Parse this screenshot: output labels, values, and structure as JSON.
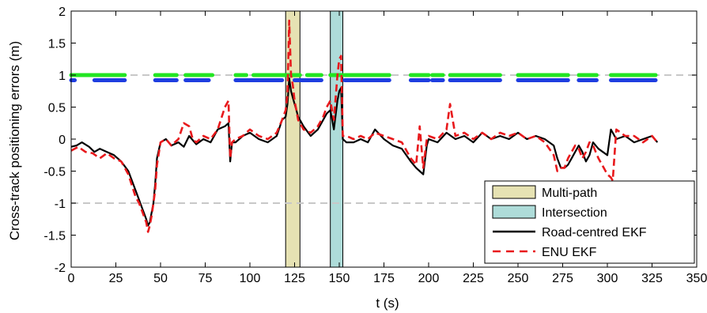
{
  "chart_data": {
    "type": "line",
    "xlabel": "t (s)",
    "ylabel": "Cross-track positioning errors (m)",
    "xlim": [
      0,
      350
    ],
    "ylim": [
      -2,
      2
    ],
    "xticks": [
      0,
      25,
      50,
      75,
      100,
      125,
      150,
      175,
      200,
      225,
      250,
      275,
      300,
      325,
      350
    ],
    "yticks": [
      -2,
      -1.5,
      -1,
      -0.5,
      0,
      0.5,
      1,
      1.5,
      2
    ],
    "xtick_labels": [
      "0",
      "25",
      "50",
      "75",
      "100",
      "125",
      "150",
      "175",
      "200",
      "225",
      "250",
      "275",
      "300",
      "325",
      "350"
    ],
    "ytick_labels": [
      "-2",
      "-1.5",
      "-1",
      "-0.5",
      "0",
      "0.5",
      "1",
      "1.5",
      "2"
    ],
    "grid": false,
    "legend_position": "bottom-right",
    "reference_lines": [
      {
        "y": 1,
        "style": "dashed",
        "color": "#c8c8c8"
      },
      {
        "y": -1,
        "style": "dashed",
        "color": "#c8c8c8"
      }
    ],
    "regions": [
      {
        "name": "Multi-path",
        "x0": 120,
        "x1": 128,
        "color": "#e6e2b3"
      },
      {
        "name": "Intersection",
        "x0": 145,
        "x1": 152,
        "color": "#aedcd9"
      }
    ],
    "series": [
      {
        "name": "Road-centred EKF",
        "color": "#000000",
        "style": "solid",
        "x": [
          0,
          3,
          6,
          10,
          13,
          16,
          20,
          24,
          28,
          32,
          36,
          38,
          40,
          42,
          43,
          44,
          45,
          46,
          47,
          48,
          50,
          53,
          56,
          60,
          63,
          66,
          70,
          74,
          78,
          82,
          86,
          88,
          89,
          90,
          92,
          96,
          100,
          105,
          110,
          115,
          118,
          120,
          121,
          122,
          123,
          124,
          125,
          126,
          127,
          128,
          130,
          134,
          138,
          141,
          143,
          145,
          147,
          149,
          150,
          151,
          152,
          154,
          158,
          162,
          166,
          170,
          175,
          180,
          185,
          190,
          193,
          195,
          197,
          199,
          200,
          205,
          210,
          215,
          220,
          225,
          230,
          235,
          240,
          245,
          250,
          255,
          260,
          265,
          270,
          272,
          274,
          276,
          278,
          280,
          282,
          284,
          286,
          288,
          290,
          292,
          295,
          300,
          302,
          305,
          310,
          315,
          320,
          325,
          328
        ],
        "y": [
          -0.12,
          -0.1,
          -0.05,
          -0.12,
          -0.2,
          -0.15,
          -0.2,
          -0.25,
          -0.35,
          -0.5,
          -0.8,
          -0.95,
          -1.1,
          -1.25,
          -1.35,
          -1.3,
          -1.15,
          -1.0,
          -0.7,
          -0.3,
          -0.05,
          0.0,
          -0.1,
          -0.05,
          -0.12,
          0.05,
          -0.08,
          0.0,
          -0.05,
          0.15,
          0.2,
          0.25,
          -0.35,
          -0.05,
          -0.05,
          0.05,
          0.1,
          0.0,
          -0.05,
          0.05,
          0.3,
          0.35,
          0.55,
          0.95,
          0.75,
          0.65,
          0.55,
          0.45,
          0.35,
          0.3,
          0.2,
          0.05,
          0.15,
          0.3,
          0.4,
          0.45,
          0.15,
          0.6,
          0.75,
          0.8,
          0.0,
          -0.05,
          -0.05,
          0.0,
          -0.05,
          0.15,
          0.0,
          -0.1,
          -0.15,
          -0.35,
          -0.45,
          -0.5,
          -0.55,
          -0.1,
          0.0,
          -0.05,
          0.1,
          0.0,
          0.05,
          -0.05,
          0.1,
          0.0,
          0.05,
          0.0,
          0.1,
          0.0,
          0.05,
          0.0,
          -0.1,
          -0.3,
          -0.45,
          -0.45,
          -0.4,
          -0.3,
          -0.2,
          -0.1,
          -0.2,
          -0.35,
          -0.25,
          -0.05,
          -0.15,
          -0.25,
          0.15,
          0.0,
          0.05,
          -0.05,
          0.0,
          0.05,
          -0.05
        ]
      },
      {
        "name": "ENU EKF",
        "color": "#e8191c",
        "style": "dashed",
        "x": [
          0,
          4,
          8,
          12,
          16,
          20,
          24,
          28,
          32,
          36,
          38,
          40,
          42,
          43,
          44,
          45,
          46,
          47,
          48,
          50,
          53,
          56,
          60,
          63,
          66,
          68,
          70,
          74,
          78,
          82,
          86,
          88,
          89,
          90,
          92,
          96,
          100,
          105,
          110,
          115,
          118,
          120,
          121,
          122,
          123,
          124,
          125,
          126,
          127,
          128,
          130,
          134,
          138,
          141,
          143,
          145,
          147,
          149,
          150,
          151,
          152,
          154,
          158,
          162,
          166,
          170,
          175,
          180,
          185,
          190,
          193,
          195,
          197,
          199,
          200,
          205,
          210,
          212,
          215,
          220,
          225,
          230,
          235,
          240,
          245,
          250,
          255,
          260,
          265,
          270,
          272,
          274,
          276,
          278,
          280,
          282,
          284,
          286,
          288,
          290,
          292,
          295,
          298,
          300,
          302,
          303,
          305,
          310,
          315,
          320,
          325,
          328
        ],
        "y": [
          -0.18,
          -0.12,
          -0.2,
          -0.22,
          -0.3,
          -0.22,
          -0.3,
          -0.35,
          -0.55,
          -0.9,
          -1.0,
          -1.15,
          -1.3,
          -1.45,
          -1.35,
          -1.2,
          -1.0,
          -0.8,
          -0.4,
          -0.05,
          0.0,
          -0.1,
          0.0,
          0.25,
          0.2,
          0.0,
          -0.05,
          0.05,
          0.0,
          0.15,
          0.5,
          0.6,
          -0.3,
          -0.05,
          0.0,
          0.05,
          0.15,
          0.05,
          0.0,
          0.1,
          0.3,
          0.45,
          0.7,
          1.85,
          1.0,
          0.85,
          0.6,
          0.45,
          0.3,
          0.25,
          0.15,
          0.1,
          0.2,
          0.35,
          0.5,
          0.6,
          0.3,
          1.0,
          1.25,
          1.3,
          0.05,
          0.05,
          0.0,
          0.05,
          0.0,
          0.1,
          0.05,
          0.0,
          -0.05,
          -0.3,
          -0.4,
          0.2,
          -0.45,
          0.0,
          0.05,
          0.0,
          0.15,
          0.55,
          0.05,
          0.1,
          0.0,
          0.1,
          0.0,
          0.1,
          0.05,
          0.1,
          0.0,
          0.05,
          -0.05,
          -0.25,
          -0.5,
          -0.45,
          -0.45,
          -0.3,
          -0.2,
          -0.1,
          -0.15,
          -0.3,
          -0.2,
          -0.05,
          -0.1,
          -0.3,
          -0.45,
          -0.55,
          -0.6,
          -0.65,
          0.15,
          0.05,
          0.05,
          -0.05,
          0.05,
          -0.05
        ]
      }
    ],
    "event_bars": [
      {
        "y": 1,
        "color": "#22e622",
        "segments": [
          [
            0,
            30
          ],
          [
            47,
            59
          ],
          [
            64,
            79
          ],
          [
            92,
            98
          ],
          [
            102,
            128
          ],
          [
            132,
            140
          ],
          [
            145,
            152
          ],
          [
            153,
            178
          ],
          [
            190,
            200
          ],
          [
            202,
            208
          ],
          [
            212,
            240
          ],
          [
            250,
            278
          ],
          [
            284,
            294
          ],
          [
            302,
            327
          ]
        ]
      },
      {
        "y": 0.92,
        "color": "#1e3de0",
        "segments": [
          [
            0,
            2
          ],
          [
            13,
            30
          ],
          [
            47,
            59
          ],
          [
            64,
            77
          ],
          [
            92,
            118
          ],
          [
            125,
            140
          ],
          [
            153,
            178
          ],
          [
            190,
            200
          ],
          [
            202,
            208
          ],
          [
            212,
            240
          ],
          [
            250,
            278
          ],
          [
            284,
            294
          ],
          [
            302,
            327
          ]
        ]
      }
    ]
  },
  "legend": {
    "entries": [
      {
        "label": "Multi-path",
        "kind": "patch",
        "color": "#e6e2b3"
      },
      {
        "label": "Intersection",
        "kind": "patch",
        "color": "#aedcd9"
      },
      {
        "label": "Road-centred EKF",
        "kind": "line-solid",
        "color": "#000000"
      },
      {
        "label": "ENU EKF",
        "kind": "line-dashed",
        "color": "#e8191c"
      }
    ]
  }
}
